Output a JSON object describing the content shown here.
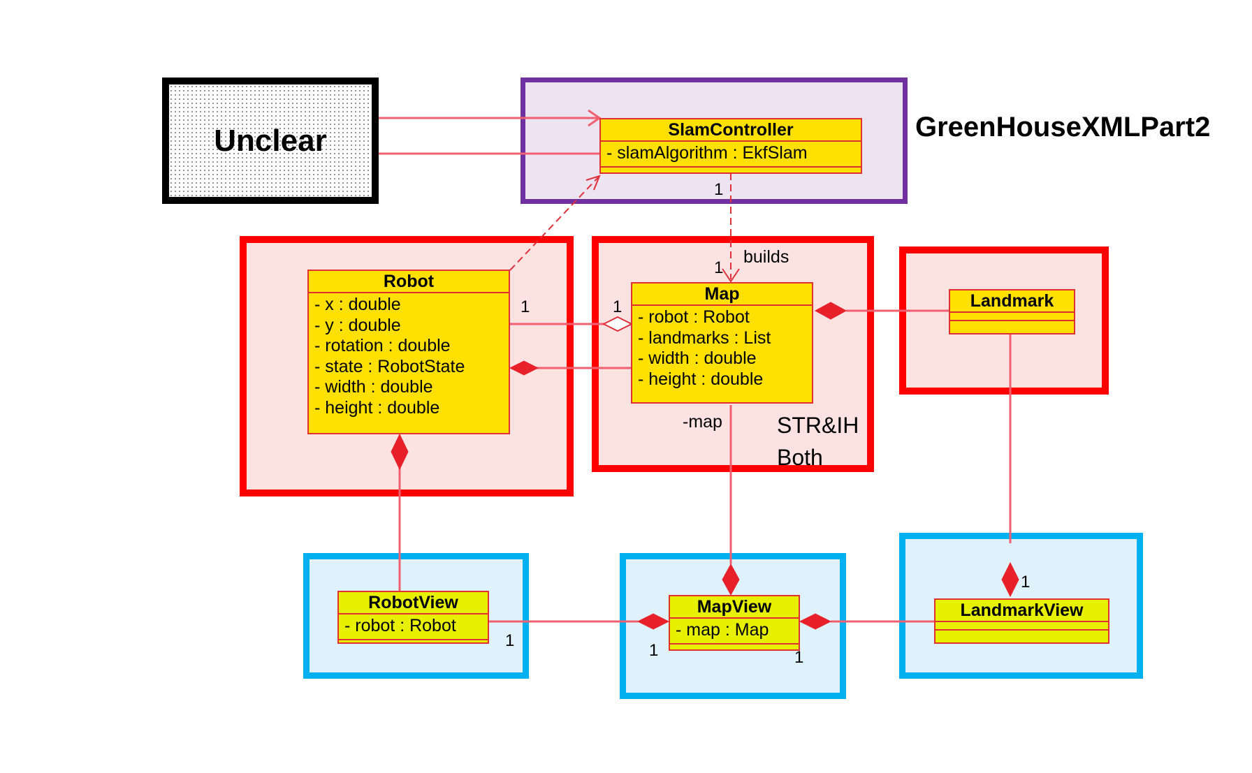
{
  "regions": {
    "unclear_label": "Unclear",
    "title": "GreenHouseXMLPart2",
    "note_line1": "STR&IH",
    "note_line2": "Both"
  },
  "classes": {
    "slam_controller": {
      "name": "SlamController",
      "attributes": [
        "- slamAlgorithm : EkfSlam"
      ]
    },
    "robot": {
      "name": "Robot",
      "attributes": [
        "- x : double",
        "- y : double",
        "- rotation : double",
        "- state : RobotState",
        "- width : double",
        "- height : double"
      ]
    },
    "map": {
      "name": "Map",
      "attributes": [
        "- robot : Robot",
        "- landmarks : List",
        "- width : double",
        "- height : double"
      ]
    },
    "landmark": {
      "name": "Landmark",
      "attributes": []
    },
    "robot_view": {
      "name": "RobotView",
      "attributes": [
        "- robot : Robot"
      ]
    },
    "map_view": {
      "name": "MapView",
      "attributes": [
        "- map : Map"
      ]
    },
    "landmark_view": {
      "name": "LandmarkView",
      "attributes": []
    }
  },
  "edge_labels": {
    "builds": "builds",
    "map_role": "-map"
  },
  "multiplicities": {
    "slam_builds_source": "1",
    "slam_builds_target": "1",
    "robot_map_robot_end": "1",
    "robot_map_map_end": "1",
    "robotview_end": "1",
    "mapview_left": "1",
    "mapview_right": "1",
    "landmarkview_top": "1"
  },
  "colors": {
    "connector": "#f06070",
    "diamond": "#e8202a",
    "class_fill": "#ffe000",
    "class_border": "#e03030"
  }
}
